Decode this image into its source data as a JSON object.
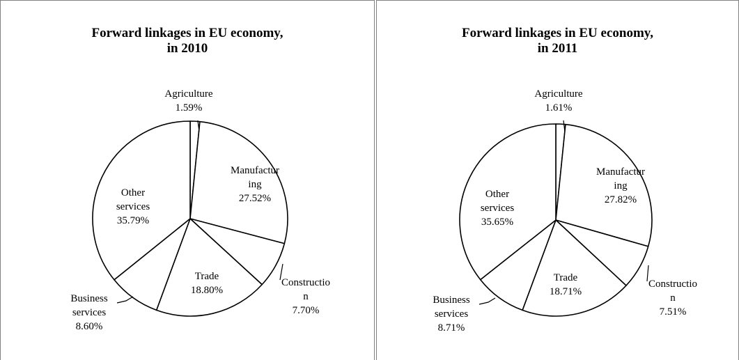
{
  "chart_data": [
    {
      "type": "pie",
      "title_line1": "Forward linkages in EU economy,",
      "title_line2": "in 2010",
      "slices": [
        {
          "label_lines": [
            "Agriculture"
          ],
          "value_label": "1.59%",
          "value": 1.59
        },
        {
          "label_lines": [
            "Manufactur",
            "ing"
          ],
          "value_label": "27.52%",
          "value": 27.52
        },
        {
          "label_lines": [
            "Constructio",
            "n"
          ],
          "value_label": "7.70%",
          "value": 7.7
        },
        {
          "label_lines": [
            "Trade"
          ],
          "value_label": "18.80%",
          "value": 18.8
        },
        {
          "label_lines": [
            "Business",
            "services"
          ],
          "value_label": "8.60%",
          "value": 8.6
        },
        {
          "label_lines": [
            "Other",
            "services"
          ],
          "value_label": "35.79%",
          "value": 35.79
        }
      ]
    },
    {
      "type": "pie",
      "title_line1": "Forward linkages in EU economy,",
      "title_line2": "in 2011",
      "slices": [
        {
          "label_lines": [
            "Agriculture"
          ],
          "value_label": "1.61%",
          "value": 1.61
        },
        {
          "label_lines": [
            "Manufactur",
            "ing"
          ],
          "value_label": "27.82%",
          "value": 27.82
        },
        {
          "label_lines": [
            "Constructio",
            "n"
          ],
          "value_label": "7.51%",
          "value": 7.51
        },
        {
          "label_lines": [
            "Trade"
          ],
          "value_label": "18.71%",
          "value": 18.71
        },
        {
          "label_lines": [
            "Business",
            "services"
          ],
          "value_label": "8.71%",
          "value": 8.71
        },
        {
          "label_lines": [
            "Other",
            "services"
          ],
          "value_label": "35.65%",
          "value": 35.65
        }
      ]
    }
  ]
}
